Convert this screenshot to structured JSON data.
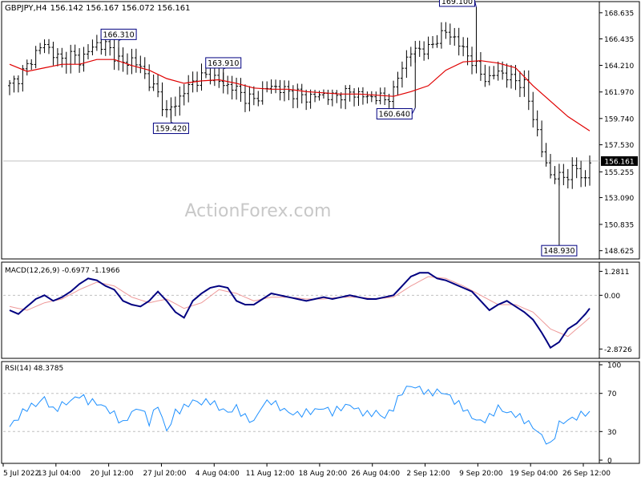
{
  "header": {
    "symbol_label": "GBPJPY,H4",
    "ohlc": "156.142 156.167 156.072 156.161",
    "watermark": "ActionForex.com"
  },
  "colors": {
    "candle": "#000000",
    "ma": "#e00000",
    "macd_main": "#000080",
    "macd_signal": "#ee9999",
    "rsi": "#1e90ff",
    "grid": "#c0c0c0",
    "label_border": "#000080",
    "last_price_bg": "#000000"
  },
  "chart_data": [
    {
      "type": "candlestick",
      "title": "GBPJPY,H4",
      "y_ticks": [
        "168.635",
        "166.435",
        "164.210",
        "161.970",
        "159.740",
        "157.530",
        "155.255",
        "153.090",
        "150.835",
        "148.625"
      ],
      "ylim": [
        148.2,
        169.3
      ],
      "x_ticks": [
        "5 Jul 2022",
        "13 Jul 04:00",
        "20 Jul 12:00",
        "27 Jul 20:00",
        "4 Aug 04:00",
        "11 Aug 12:00",
        "18 Aug 20:00",
        "26 Aug 04:00",
        "2 Sep 12:00",
        "9 Sep 20:00",
        "19 Sep 04:00",
        "26 Sep 12:00"
      ],
      "close_path": [
        [
          0,
          162.5
        ],
        [
          2,
          163.2
        ],
        [
          4,
          164.1
        ],
        [
          6,
          165.3
        ],
        [
          8,
          166.0
        ],
        [
          10,
          165.2
        ],
        [
          12,
          164.6
        ],
        [
          14,
          165.1
        ],
        [
          16,
          164.6
        ],
        [
          18,
          165.4
        ],
        [
          20,
          166.0
        ],
        [
          22,
          165.9
        ],
        [
          24,
          165.1
        ],
        [
          26,
          164.3
        ],
        [
          28,
          164.7
        ],
        [
          30,
          164.0
        ],
        [
          32,
          162.8
        ],
        [
          34,
          161.8
        ],
        [
          36,
          160.2
        ],
        [
          38,
          161.0
        ],
        [
          40,
          162.0
        ],
        [
          42,
          162.8
        ],
        [
          44,
          163.2
        ],
        [
          46,
          163.4
        ],
        [
          48,
          162.8
        ],
        [
          50,
          162.5
        ],
        [
          52,
          162.2
        ],
        [
          54,
          161.5
        ],
        [
          56,
          161.3
        ],
        [
          58,
          162.0
        ],
        [
          60,
          162.5
        ],
        [
          62,
          162.2
        ],
        [
          64,
          162.0
        ],
        [
          66,
          161.8
        ],
        [
          68,
          161.5
        ],
        [
          70,
          161.6
        ],
        [
          72,
          161.8
        ],
        [
          74,
          161.5
        ],
        [
          76,
          161.8
        ],
        [
          78,
          161.9
        ],
        [
          80,
          161.8
        ],
        [
          82,
          161.5
        ],
        [
          84,
          161.6
        ],
        [
          86,
          161.3
        ],
        [
          88,
          162.0
        ],
        [
          90,
          164.2
        ],
        [
          92,
          165.3
        ],
        [
          94,
          165.6
        ],
        [
          96,
          165.5
        ],
        [
          98,
          166.5
        ],
        [
          100,
          167.0
        ],
        [
          102,
          166.5
        ],
        [
          104,
          165.5
        ],
        [
          106,
          164.6
        ],
        [
          108,
          163.5
        ],
        [
          110,
          163.0
        ],
        [
          112,
          163.8
        ],
        [
          114,
          163.2
        ],
        [
          116,
          163.0
        ],
        [
          118,
          162.5
        ],
        [
          120,
          160.0
        ],
        [
          122,
          157.0
        ],
        [
          124,
          155.0
        ],
        [
          126,
          154.8
        ],
        [
          128,
          155.0
        ],
        [
          130,
          155.6
        ],
        [
          132,
          154.5
        ],
        [
          133,
          156.1
        ]
      ],
      "ma_path": [
        [
          0,
          164.3
        ],
        [
          4,
          163.7
        ],
        [
          8,
          164.0
        ],
        [
          12,
          164.3
        ],
        [
          16,
          164.3
        ],
        [
          20,
          164.7
        ],
        [
          24,
          164.7
        ],
        [
          28,
          164.2
        ],
        [
          32,
          163.8
        ],
        [
          36,
          163.1
        ],
        [
          40,
          162.7
        ],
        [
          44,
          162.9
        ],
        [
          48,
          163.0
        ],
        [
          52,
          162.7
        ],
        [
          56,
          162.3
        ],
        [
          60,
          162.2
        ],
        [
          64,
          162.2
        ],
        [
          68,
          162.0
        ],
        [
          72,
          161.9
        ],
        [
          76,
          161.8
        ],
        [
          80,
          161.8
        ],
        [
          84,
          161.7
        ],
        [
          88,
          161.6
        ],
        [
          92,
          162.0
        ],
        [
          96,
          162.5
        ],
        [
          100,
          163.8
        ],
        [
          104,
          164.5
        ],
        [
          108,
          164.6
        ],
        [
          112,
          164.4
        ],
        [
          116,
          164.0
        ],
        [
          120,
          162.5
        ],
        [
          124,
          161.2
        ],
        [
          128,
          159.9
        ],
        [
          133,
          158.7
        ]
      ],
      "annotations": [
        {
          "text": "166.310",
          "x": 25,
          "y": 166.31
        },
        {
          "text": "159.420",
          "x": 37,
          "y": 159.42
        },
        {
          "text": "163.910",
          "x": 49,
          "y": 163.91
        },
        {
          "text": "160.640",
          "x": 93,
          "y": 160.64
        },
        {
          "text": "169.100",
          "x": 107,
          "y": 169.1
        },
        {
          "text": "148.930",
          "x": 126,
          "y": 148.93
        }
      ],
      "last_price": "156.161"
    },
    {
      "type": "line",
      "title": "MACD(12,26,9) -0.6977 -1.1966",
      "y_ticks": [
        "1.2811",
        "0.00",
        "-2.8726"
      ],
      "ylim": [
        -3.2,
        1.6
      ],
      "macd_path": [
        [
          0,
          -0.8
        ],
        [
          2,
          -1.0
        ],
        [
          4,
          -0.6
        ],
        [
          6,
          -0.2
        ],
        [
          8,
          0.0
        ],
        [
          10,
          -0.3
        ],
        [
          12,
          -0.1
        ],
        [
          14,
          0.2
        ],
        [
          16,
          0.6
        ],
        [
          18,
          0.9
        ],
        [
          20,
          0.8
        ],
        [
          22,
          0.5
        ],
        [
          24,
          0.3
        ],
        [
          26,
          -0.3
        ],
        [
          28,
          -0.5
        ],
        [
          30,
          -0.6
        ],
        [
          32,
          -0.3
        ],
        [
          34,
          0.2
        ],
        [
          36,
          -0.3
        ],
        [
          38,
          -0.9
        ],
        [
          40,
          -1.2
        ],
        [
          42,
          -0.3
        ],
        [
          44,
          0.1
        ],
        [
          46,
          0.4
        ],
        [
          48,
          0.5
        ],
        [
          50,
          0.4
        ],
        [
          52,
          -0.3
        ],
        [
          54,
          -0.5
        ],
        [
          56,
          -0.5
        ],
        [
          58,
          -0.2
        ],
        [
          60,
          0.1
        ],
        [
          62,
          0.0
        ],
        [
          64,
          -0.1
        ],
        [
          66,
          -0.2
        ],
        [
          68,
          -0.3
        ],
        [
          70,
          -0.2
        ],
        [
          72,
          -0.1
        ],
        [
          74,
          -0.2
        ],
        [
          76,
          -0.1
        ],
        [
          78,
          0.0
        ],
        [
          80,
          -0.1
        ],
        [
          82,
          -0.2
        ],
        [
          84,
          -0.2
        ],
        [
          86,
          -0.1
        ],
        [
          88,
          0.0
        ],
        [
          90,
          0.5
        ],
        [
          92,
          1.0
        ],
        [
          94,
          1.2
        ],
        [
          96,
          1.2
        ],
        [
          98,
          0.9
        ],
        [
          100,
          0.8
        ],
        [
          102,
          0.6
        ],
        [
          104,
          0.4
        ],
        [
          106,
          0.2
        ],
        [
          108,
          -0.3
        ],
        [
          110,
          -0.8
        ],
        [
          112,
          -0.5
        ],
        [
          114,
          -0.3
        ],
        [
          116,
          -0.6
        ],
        [
          118,
          -0.9
        ],
        [
          120,
          -1.3
        ],
        [
          122,
          -2.0
        ],
        [
          124,
          -2.8
        ],
        [
          126,
          -2.5
        ],
        [
          128,
          -1.8
        ],
        [
          130,
          -1.5
        ],
        [
          132,
          -1.0
        ],
        [
          133,
          -0.7
        ]
      ],
      "signal_path": [
        [
          0,
          -0.6
        ],
        [
          4,
          -0.8
        ],
        [
          8,
          -0.4
        ],
        [
          12,
          -0.2
        ],
        [
          16,
          0.3
        ],
        [
          20,
          0.7
        ],
        [
          24,
          0.5
        ],
        [
          28,
          -0.1
        ],
        [
          32,
          -0.4
        ],
        [
          36,
          -0.2
        ],
        [
          40,
          -0.7
        ],
        [
          44,
          -0.4
        ],
        [
          48,
          0.3
        ],
        [
          52,
          0.1
        ],
        [
          56,
          -0.3
        ],
        [
          60,
          -0.1
        ],
        [
          64,
          -0.1
        ],
        [
          68,
          -0.2
        ],
        [
          72,
          -0.2
        ],
        [
          76,
          -0.1
        ],
        [
          80,
          -0.1
        ],
        [
          84,
          -0.2
        ],
        [
          88,
          -0.1
        ],
        [
          92,
          0.5
        ],
        [
          96,
          1.0
        ],
        [
          100,
          0.9
        ],
        [
          104,
          0.5
        ],
        [
          108,
          0.0
        ],
        [
          112,
          -0.5
        ],
        [
          116,
          -0.5
        ],
        [
          120,
          -0.9
        ],
        [
          124,
          -1.8
        ],
        [
          128,
          -2.2
        ],
        [
          133,
          -1.2
        ]
      ]
    },
    {
      "type": "line",
      "title": "RSI(14) 48.3785",
      "y_ticks": [
        "100",
        "70",
        "30",
        "0"
      ],
      "ylim": [
        0,
        100
      ],
      "rsi_path": [
        [
          0,
          35
        ],
        [
          2,
          45
        ],
        [
          4,
          55
        ],
        [
          6,
          58
        ],
        [
          8,
          65
        ],
        [
          10,
          52
        ],
        [
          12,
          58
        ],
        [
          14,
          62
        ],
        [
          16,
          68
        ],
        [
          18,
          62
        ],
        [
          20,
          60
        ],
        [
          22,
          55
        ],
        [
          24,
          48
        ],
        [
          26,
          38
        ],
        [
          28,
          50
        ],
        [
          30,
          55
        ],
        [
          32,
          40
        ],
        [
          34,
          58
        ],
        [
          36,
          30
        ],
        [
          38,
          50
        ],
        [
          40,
          55
        ],
        [
          42,
          62
        ],
        [
          44,
          60
        ],
        [
          46,
          62
        ],
        [
          48,
          55
        ],
        [
          50,
          50
        ],
        [
          52,
          55
        ],
        [
          54,
          45
        ],
        [
          56,
          40
        ],
        [
          58,
          58
        ],
        [
          60,
          62
        ],
        [
          62,
          55
        ],
        [
          64,
          50
        ],
        [
          66,
          48
        ],
        [
          68,
          50
        ],
        [
          70,
          52
        ],
        [
          72,
          55
        ],
        [
          74,
          50
        ],
        [
          76,
          55
        ],
        [
          78,
          58
        ],
        [
          80,
          52
        ],
        [
          82,
          48
        ],
        [
          84,
          50
        ],
        [
          86,
          45
        ],
        [
          88,
          55
        ],
        [
          90,
          72
        ],
        [
          92,
          78
        ],
        [
          94,
          75
        ],
        [
          96,
          70
        ],
        [
          98,
          72
        ],
        [
          100,
          70
        ],
        [
          102,
          62
        ],
        [
          104,
          55
        ],
        [
          106,
          45
        ],
        [
          108,
          40
        ],
        [
          110,
          45
        ],
        [
          112,
          55
        ],
        [
          114,
          50
        ],
        [
          116,
          48
        ],
        [
          118,
          42
        ],
        [
          120,
          35
        ],
        [
          122,
          25
        ],
        [
          124,
          15
        ],
        [
          126,
          38
        ],
        [
          128,
          42
        ],
        [
          130,
          45
        ],
        [
          132,
          50
        ],
        [
          133,
          48
        ]
      ],
      "levels": [
        70,
        30
      ]
    }
  ]
}
